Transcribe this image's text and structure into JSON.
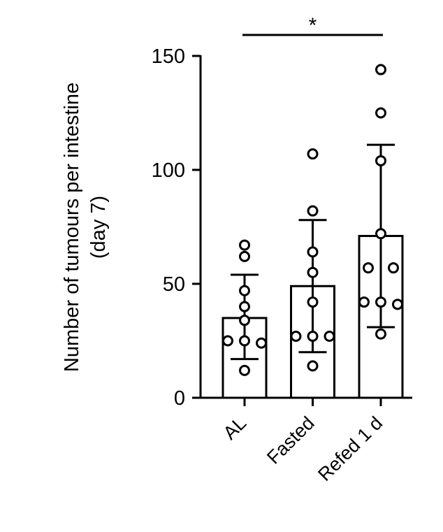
{
  "chart_data": {
    "type": "bar",
    "y_label": [
      "Number of tumours per intestine",
      "(day 7)"
    ],
    "categories": [
      "AL",
      "Fasted",
      "Refed 1 d"
    ],
    "values": [
      35,
      49,
      71
    ],
    "error_high": [
      54,
      78,
      111
    ],
    "error_low": [
      17,
      20,
      31
    ],
    "points": [
      [
        67,
        62,
        47,
        40,
        34,
        25,
        25,
        24,
        12
      ],
      [
        107,
        82,
        64,
        55,
        42,
        27,
        27,
        27,
        14
      ],
      [
        144,
        125,
        104,
        72,
        57,
        57,
        42,
        42,
        41,
        28
      ]
    ],
    "color": "#ffffff",
    "ylim": [
      0,
      150
    ],
    "yticks": [
      0,
      50,
      100,
      150
    ],
    "annotation": {
      "text": "*",
      "from": 0,
      "to": 2
    }
  }
}
